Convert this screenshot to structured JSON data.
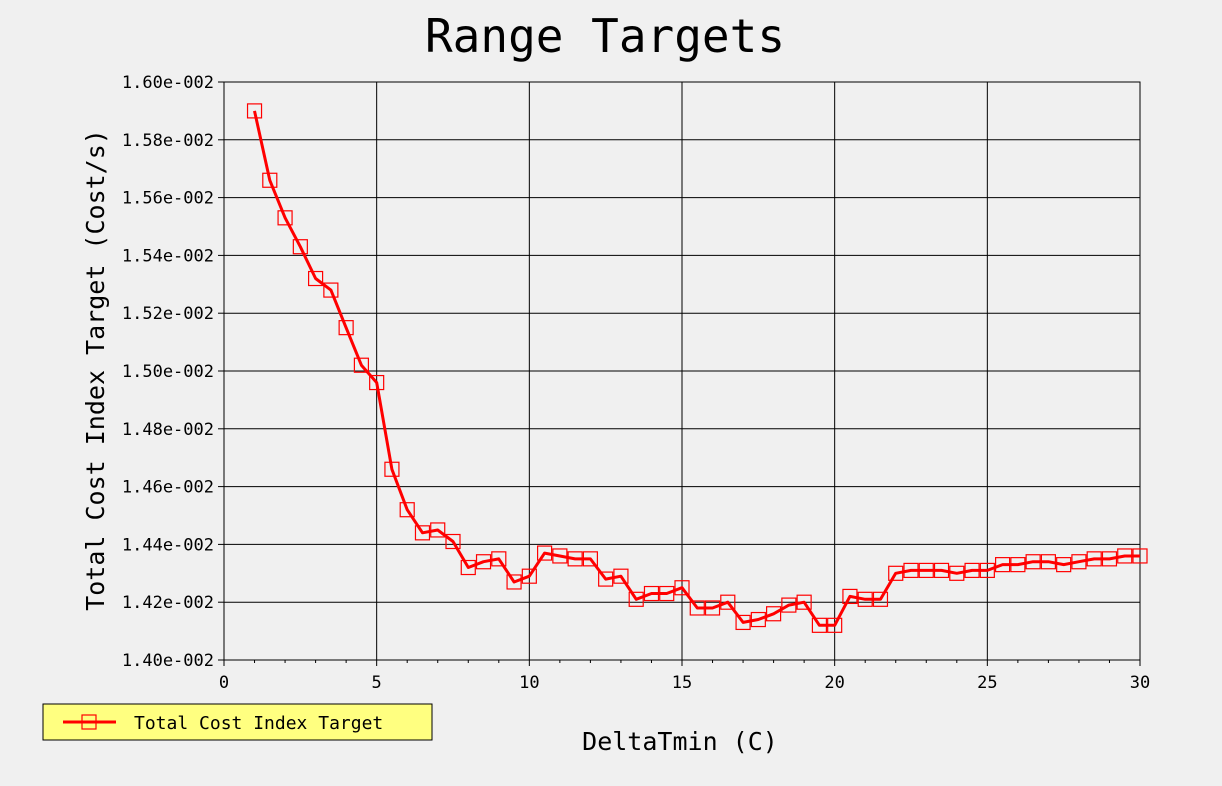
{
  "chart_data": {
    "type": "line",
    "title": "Range Targets",
    "xlabel": "DeltaTmin (C)",
    "ylabel": "Total Cost Index Target (Cost/s)",
    "xlim": [
      0,
      30
    ],
    "ylim": [
      0.014,
      0.016
    ],
    "x_ticks": [
      "0",
      "5",
      "10",
      "15",
      "20",
      "25",
      "30"
    ],
    "x_tick_values": [
      0,
      5,
      10,
      15,
      20,
      25,
      30
    ],
    "y_ticks": [
      "1.40e-002",
      "1.42e-002",
      "1.44e-002",
      "1.46e-002",
      "1.48e-002",
      "1.50e-002",
      "1.52e-002",
      "1.54e-002",
      "1.56e-002",
      "1.58e-002",
      "1.60e-002"
    ],
    "y_tick_values": [
      0.014,
      0.0142,
      0.0144,
      0.0146,
      0.0148,
      0.015,
      0.0152,
      0.0154,
      0.0156,
      0.0158,
      0.016
    ],
    "grid": true,
    "legend_position": "bottom-left",
    "series": [
      {
        "name": "Total Cost Index Target",
        "color": "#ff0000",
        "marker": "square",
        "x": [
          1,
          1.5,
          2,
          2.5,
          3,
          3.5,
          4,
          4.5,
          5,
          5.5,
          6,
          6.5,
          7,
          7.5,
          8,
          8.5,
          9,
          9.5,
          10,
          10.5,
          11,
          11.5,
          12,
          12.5,
          13,
          13.5,
          14,
          14.5,
          15,
          15.5,
          16,
          16.5,
          17,
          17.5,
          18,
          18.5,
          19,
          19.5,
          20,
          20.5,
          21,
          21.5,
          22,
          22.5,
          23,
          23.5,
          24,
          24.5,
          25,
          25.5,
          26,
          26.5,
          27,
          27.5,
          28,
          28.5,
          29,
          29.5,
          30
        ],
        "y": [
          0.0159,
          0.01566,
          0.01553,
          0.01543,
          0.01532,
          0.01528,
          0.01515,
          0.01502,
          0.01496,
          0.01466,
          0.01452,
          0.01444,
          0.01445,
          0.01441,
          0.01432,
          0.01434,
          0.01435,
          0.01427,
          0.01429,
          0.01437,
          0.01436,
          0.01435,
          0.01435,
          0.01428,
          0.01429,
          0.01421,
          0.01423,
          0.01423,
          0.01425,
          0.01418,
          0.01418,
          0.0142,
          0.01413,
          0.01414,
          0.01416,
          0.01419,
          0.0142,
          0.01412,
          0.01412,
          0.01422,
          0.01421,
          0.01421,
          0.0143,
          0.01431,
          0.01431,
          0.01431,
          0.0143,
          0.01431,
          0.01431,
          0.01433,
          0.01433,
          0.01434,
          0.01434,
          0.01433,
          0.01434,
          0.01435,
          0.01435,
          0.01436,
          0.01436
        ]
      }
    ]
  },
  "legend": {
    "label": "Total Cost Index Target",
    "background": "#ffff80"
  },
  "colors": {
    "background": "#f0f0f0",
    "plot_background": "#f0f0f0",
    "grid": "#000000",
    "series": "#ff0000"
  }
}
